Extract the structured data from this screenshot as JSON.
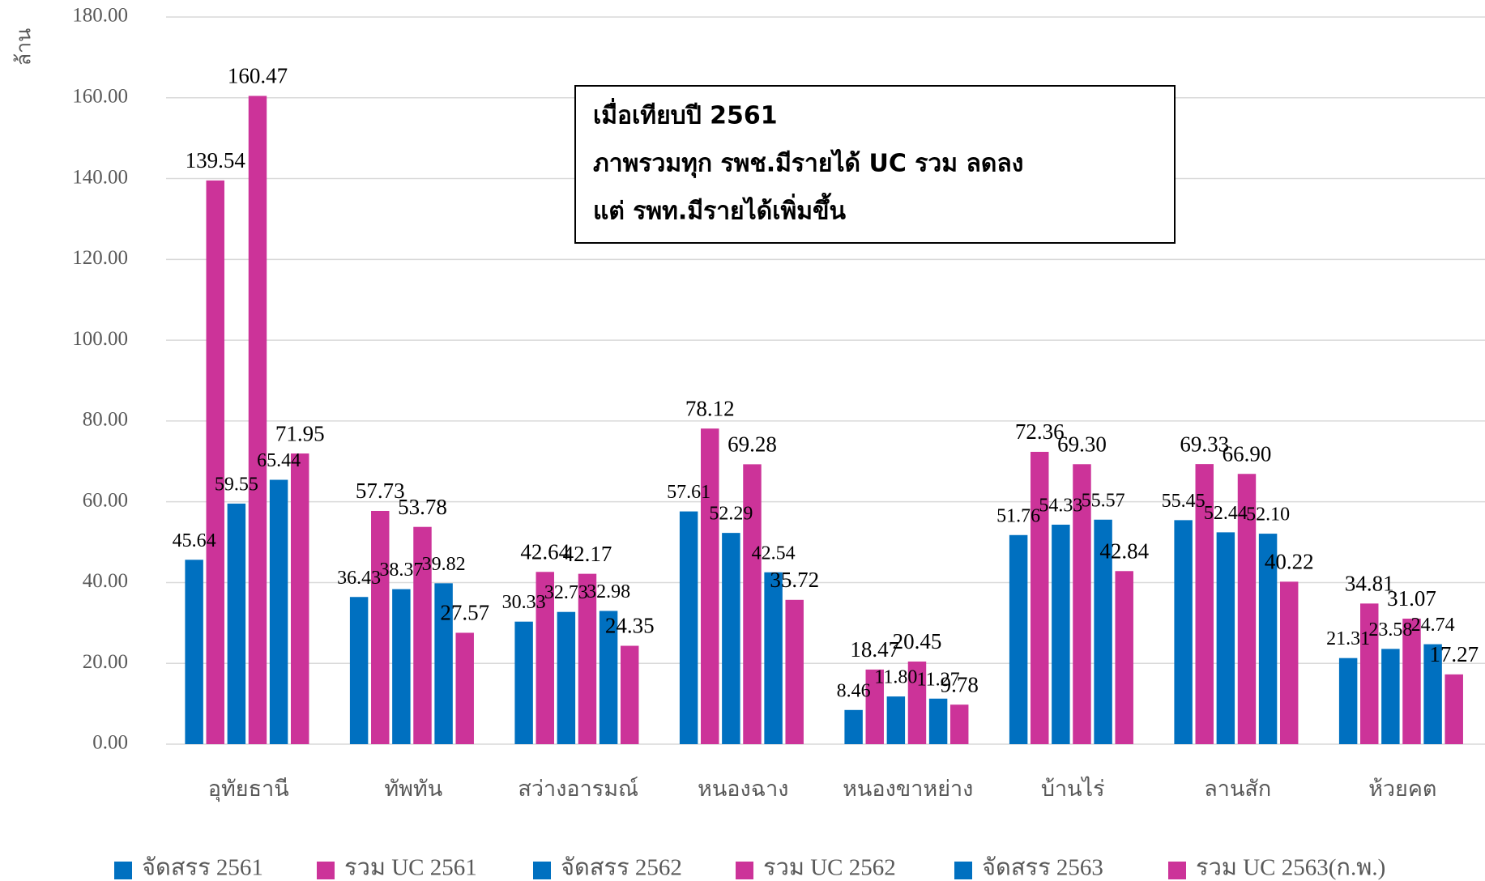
{
  "chart_data": {
    "type": "bar",
    "y_label": "ล้าน",
    "annotation": [
      "เมื่อเทียบปี 2561",
      "ภาพรวมทุก รพช.มีรายได้ UC รวม ลดลง",
      "แต่ รพท.มีรายได้เพิ่มขึ้น"
    ],
    "categories": [
      "อุทัยธานี",
      "ทัพทัน",
      "สว่างอารมณ์",
      "หนองฉาง",
      "หนองขาหย่าง",
      "บ้านไร่",
      "ลานสัก",
      "ห้วยคต"
    ],
    "series": [
      {
        "name": "จัดสรร 2561",
        "color": "#0070c0",
        "values": [
          45.64,
          36.43,
          30.33,
          57.61,
          8.46,
          51.76,
          55.45,
          21.31
        ],
        "value_labels": [
          "45.64",
          "36.43",
          "30.33",
          "57.61",
          "8.46",
          "51.76",
          "55.45",
          "21.31"
        ]
      },
      {
        "name": "รวม UC 2561",
        "color": "#cc3399",
        "values": [
          139.54,
          57.73,
          42.64,
          78.12,
          18.47,
          72.36,
          69.33,
          34.81
        ],
        "value_labels": [
          "139.54",
          "57.73",
          "42.64",
          "78.12",
          "18.47",
          "72.36",
          "69.33",
          "34.81"
        ]
      },
      {
        "name": "จัดสรร 2562",
        "color": "#0070c0",
        "values": [
          59.55,
          38.37,
          32.73,
          52.29,
          11.8,
          54.33,
          52.44,
          23.58
        ],
        "value_labels": [
          "59.55",
          "38.37",
          "32.73",
          "52.29",
          "11.80",
          "54.33",
          "52.44",
          "23.58"
        ]
      },
      {
        "name": "รวม UC 2562",
        "color": "#cc3399",
        "values": [
          160.47,
          53.78,
          42.17,
          69.28,
          20.45,
          69.3,
          66.9,
          31.07
        ],
        "value_labels": [
          "160.47",
          "53.78",
          "42.17",
          "69.28",
          "20.45",
          "69.30",
          "66.90",
          "31.07"
        ]
      },
      {
        "name": "จัดสรร 2563",
        "color": "#0070c0",
        "values": [
          65.44,
          39.82,
          32.98,
          42.54,
          11.27,
          55.57,
          52.1,
          24.74
        ],
        "value_labels": [
          "65.44",
          "39.82",
          "32.98",
          "42.54",
          "11.27",
          "55.57",
          "52.10",
          "24.74"
        ]
      },
      {
        "name": "รวม UC 2563(ก.พ.)",
        "color": "#cc3399",
        "values": [
          71.95,
          27.57,
          24.35,
          35.72,
          9.78,
          42.84,
          40.22,
          17.27
        ],
        "value_labels": [
          "71.95",
          "27.57",
          "24.35",
          "35.72",
          "9.78",
          "42.84",
          "40.22",
          "17.27"
        ]
      }
    ],
    "ylim": [
      0,
      180
    ],
    "yticks": [
      {
        "value": 0,
        "label": "0.00"
      },
      {
        "value": 20,
        "label": "20.00"
      },
      {
        "value": 40,
        "label": "40.00"
      },
      {
        "value": 60,
        "label": "60.00"
      },
      {
        "value": 80,
        "label": "80.00"
      },
      {
        "value": 100,
        "label": "100.00"
      },
      {
        "value": 120,
        "label": "120.00"
      },
      {
        "value": 140,
        "label": "140.00"
      },
      {
        "value": 160,
        "label": "160.00"
      },
      {
        "value": 180,
        "label": "180.00"
      }
    ],
    "grid": true
  }
}
